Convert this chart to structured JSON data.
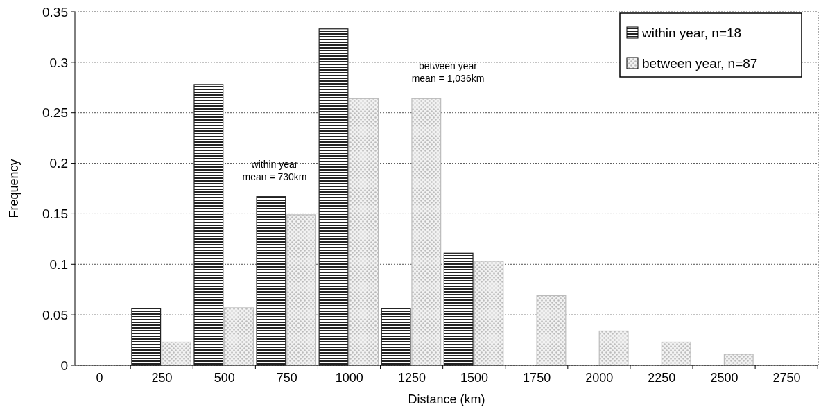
{
  "chart_data": {
    "type": "bar",
    "xlabel": "Distance (km)",
    "ylabel": "Frequency",
    "categories": [
      "0",
      "250",
      "500",
      "750",
      "1000",
      "1250",
      "1500",
      "1750",
      "2000",
      "2250",
      "2500",
      "2750"
    ],
    "series": [
      {
        "name": "within year, n=18",
        "color": "#222222",
        "values": [
          0,
          0.056,
          0.278,
          0.167,
          0.333,
          0.056,
          0.111,
          0,
          0,
          0,
          0,
          0
        ]
      },
      {
        "name": "between year, n=87",
        "color": "#bbbbbb",
        "values": [
          0,
          0.023,
          0.057,
          0.149,
          0.264,
          0.264,
          0.103,
          0.069,
          0.034,
          0.023,
          0.011,
          0
        ]
      }
    ],
    "ylim": [
      0,
      0.35
    ],
    "yticks": [
      0,
      0.05,
      0.1,
      0.15,
      0.2,
      0.25,
      0.3,
      0.35
    ],
    "grid": "y",
    "legend": "top right",
    "annotations": [
      "within year\nmean = 730km",
      "between year\nmean = 1,036km"
    ]
  }
}
